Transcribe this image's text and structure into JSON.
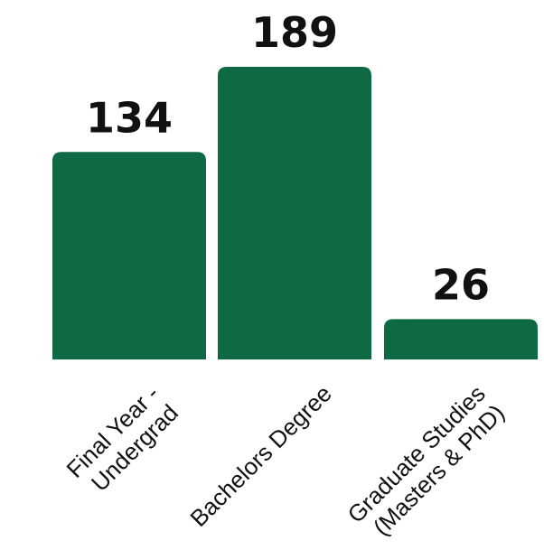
{
  "chart_data": {
    "type": "bar",
    "categories": [
      [
        "Final Year -",
        "Undergrad"
      ],
      [
        "Bachelors Degree"
      ],
      [
        "Graduate Studies",
        "(Masters & PhD)"
      ]
    ],
    "values": [
      134,
      189,
      26
    ],
    "value_labels": [
      "134",
      "189",
      "26"
    ],
    "title": "",
    "xlabel": "",
    "ylabel": "",
    "ylim": [
      0,
      189
    ],
    "grid": false,
    "legend": "none",
    "bar_color": "#0d6a42"
  }
}
